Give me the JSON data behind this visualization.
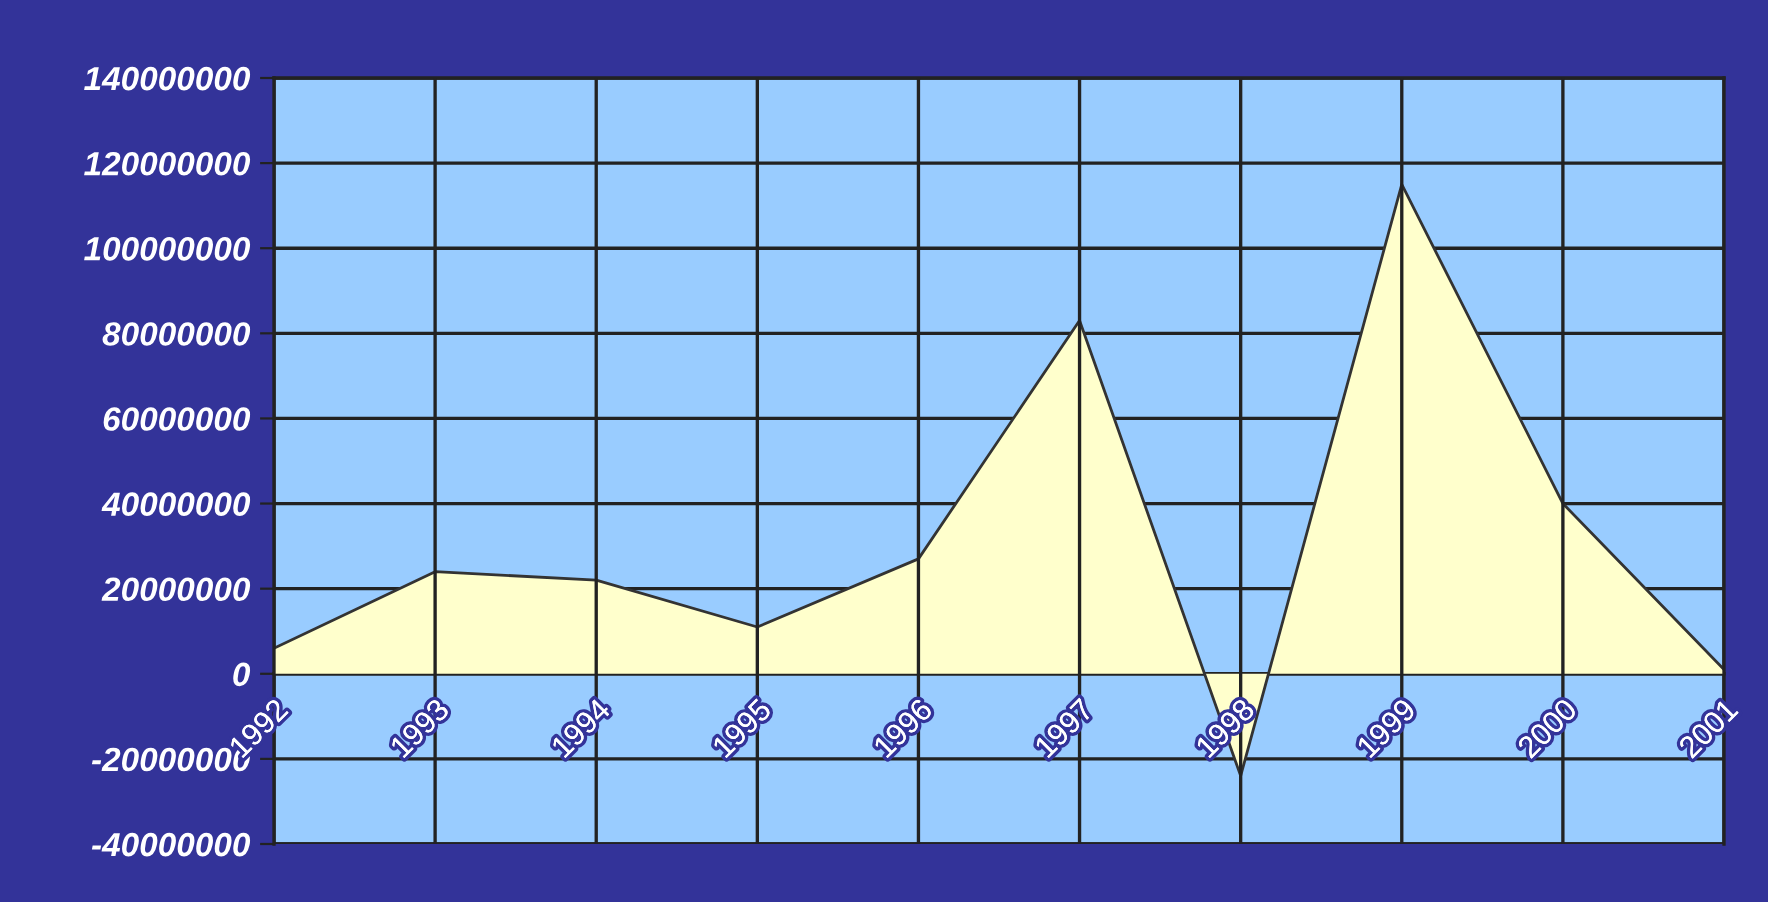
{
  "chart_data": {
    "type": "area",
    "categories": [
      "1992",
      "1993",
      "1994",
      "1995",
      "1996",
      "1997",
      "1998",
      "1999",
      "2000",
      "2001"
    ],
    "series": [
      {
        "color": "#ffffcc",
        "values": [
          6000000,
          24000000,
          22000000,
          11000000,
          27000000,
          83000000,
          -24000000,
          115000000,
          40000000,
          1000000
        ]
      }
    ],
    "ylim": [
      -40000000,
      140000000
    ],
    "yticks": [
      -40000000,
      -20000000,
      0,
      20000000,
      40000000,
      60000000,
      80000000,
      100000000,
      120000000,
      140000000
    ],
    "grid": true
  }
}
